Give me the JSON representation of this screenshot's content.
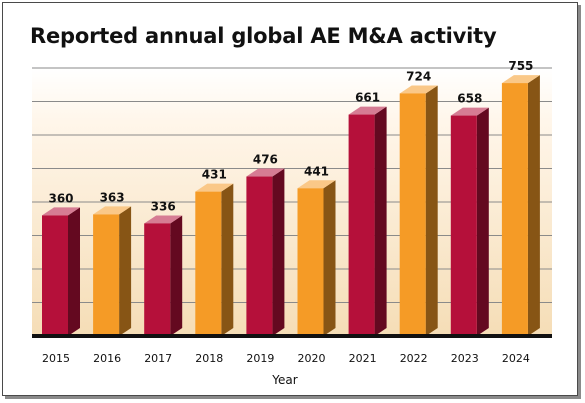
{
  "title": "Reported annual global AE M&A activity",
  "chart_data": {
    "type": "bar",
    "title": "Reported annual global AE M&A activity",
    "xlabel": "Year",
    "ylabel": "",
    "categories": [
      "2015",
      "2016",
      "2017",
      "2018",
      "2019",
      "2020",
      "2021",
      "2022",
      "2023",
      "2024"
    ],
    "values": [
      360,
      363,
      336,
      431,
      476,
      441,
      661,
      724,
      658,
      755
    ],
    "data_labels": [
      "360",
      "363",
      "336",
      "431",
      "476",
      "441",
      "661",
      "724",
      "658",
      "755"
    ],
    "bar_colors": [
      "#b5103a",
      "#f59b26",
      "#b5103a",
      "#f59b26",
      "#b5103a",
      "#f59b26",
      "#b5103a",
      "#f59b26",
      "#b5103a",
      "#f59b26"
    ],
    "ylim": [
      0,
      800
    ],
    "grid": true,
    "legend": "none"
  }
}
